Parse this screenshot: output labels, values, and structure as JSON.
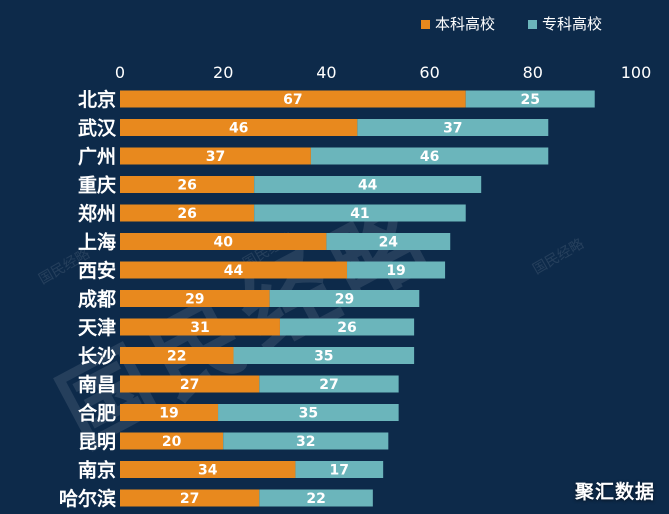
{
  "legend": {
    "items": [
      {
        "label": "本科高校",
        "color": "#e8891e"
      },
      {
        "label": "专科高校",
        "color": "#6bb5bb"
      }
    ]
  },
  "watermark": {
    "text": "国民经略",
    "small_text": "国民经略"
  },
  "brand": {
    "text": "聚汇数据"
  },
  "colors": {
    "background": "#0d2a4a",
    "axis_text": "#ffffff",
    "bar_label": "#ffffff"
  },
  "chart_data": {
    "type": "bar",
    "orientation": "horizontal",
    "stacked": true,
    "categories": [
      "北京",
      "武汉",
      "广州",
      "重庆",
      "郑州",
      "上海",
      "西安",
      "成都",
      "天津",
      "长沙",
      "南昌",
      "合肥",
      "昆明",
      "南京",
      "哈尔滨"
    ],
    "series": [
      {
        "name": "本科高校",
        "color": "#e8891e",
        "values": [
          67,
          46,
          37,
          26,
          26,
          40,
          44,
          29,
          31,
          22,
          27,
          19,
          20,
          34,
          27
        ]
      },
      {
        "name": "专科高校",
        "color": "#6bb5bb",
        "values": [
          25,
          37,
          46,
          44,
          41,
          24,
          19,
          29,
          26,
          35,
          27,
          35,
          32,
          17,
          22
        ]
      }
    ],
    "xticks": [
      0,
      20,
      40,
      60,
      80,
      100
    ],
    "xlim": [
      0,
      100
    ],
    "title": "",
    "xlabel": "",
    "ylabel": "",
    "grid": false,
    "legend_position": "top-right",
    "axis_position": "top"
  }
}
